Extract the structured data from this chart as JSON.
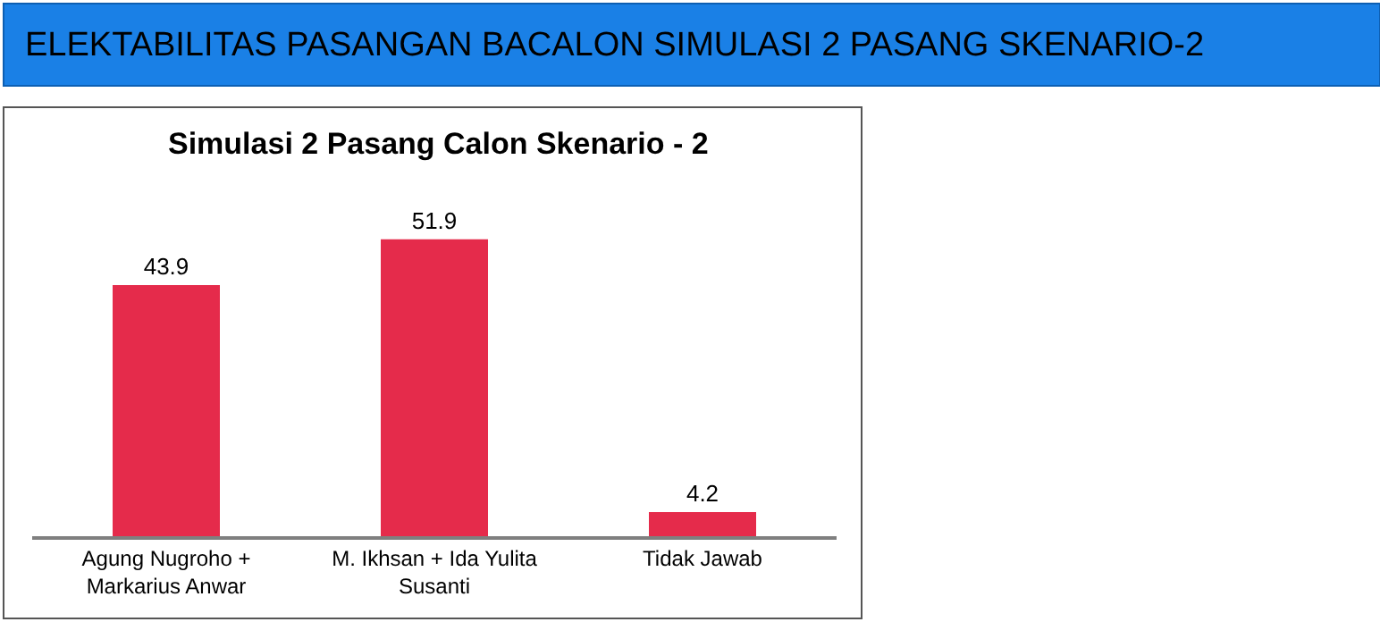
{
  "chart_data": {
    "type": "bar",
    "title": "ELEKTABILITAS PASANGAN BACALON SIMULASI 2 PASANG SKENARIO-2",
    "subtitle": "Simulasi 2 Pasang Calon Skenario - 2",
    "categories": [
      "Agung Nugroho + Markarius Anwar",
      "M. Ikhsan + Ida Yulita Susanti",
      "Tidak Jawab"
    ],
    "values": [
      43.9,
      51.9,
      4.2
    ],
    "color": "#e52b4b",
    "data_labels": true
  }
}
